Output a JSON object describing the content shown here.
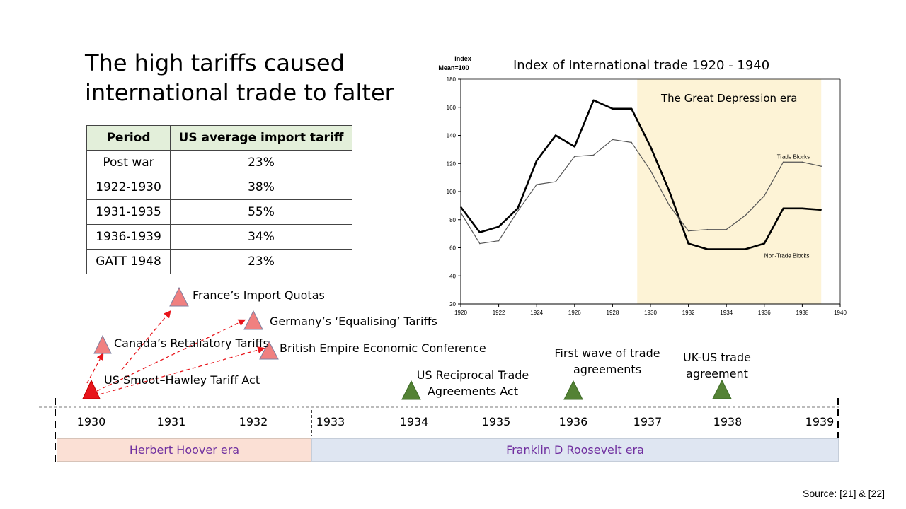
{
  "title": "The high tariffs caused international trade to falter",
  "table": {
    "headers": [
      "Period",
      "US average import tariff"
    ],
    "rows": [
      [
        "Post war",
        "23%"
      ],
      [
        "1922-1930",
        "38%"
      ],
      [
        "1931-1935",
        "55%"
      ],
      [
        "1936-1939",
        "34%"
      ],
      [
        "GATT 1948",
        "23%"
      ]
    ]
  },
  "chart_data": {
    "type": "line",
    "title": "Index of International trade 1920 - 1940",
    "ylabel": "Index\nMean=100",
    "ylabel_line1": "Index",
    "ylabel_line2": "Mean=100",
    "xlim": [
      1920,
      1940
    ],
    "ylim": [
      20,
      180
    ],
    "xticks": [
      1920,
      1922,
      1924,
      1926,
      1928,
      1930,
      1932,
      1934,
      1936,
      1938,
      1940
    ],
    "yticks": [
      20,
      40,
      60,
      80,
      100,
      120,
      140,
      160,
      180
    ],
    "shaded_region": {
      "label": "The Great Depression era",
      "from": 1929.3,
      "to": 1939,
      "color": "#fdf3d6"
    },
    "series": [
      {
        "name": "Non-Trade Blocks",
        "emphasis": "thick",
        "x": [
          1920,
          1921,
          1922,
          1923,
          1924,
          1925,
          1926,
          1927,
          1928,
          1929,
          1930,
          1931,
          1932,
          1933,
          1934,
          1935,
          1936,
          1937,
          1938,
          1939
        ],
        "y": [
          89,
          71,
          75,
          88,
          122,
          140,
          132,
          165,
          159,
          159,
          132,
          100,
          63,
          59,
          59,
          59,
          63,
          88,
          88,
          87
        ]
      },
      {
        "name": "Trade Blocks",
        "emphasis": "thin",
        "x": [
          1920,
          1921,
          1922,
          1923,
          1924,
          1925,
          1926,
          1927,
          1928,
          1929,
          1930,
          1931,
          1932,
          1933,
          1934,
          1935,
          1936,
          1937,
          1938,
          1939
        ],
        "y": [
          85,
          63,
          65,
          86,
          105,
          107,
          125,
          126,
          137,
          135,
          115,
          90,
          72,
          73,
          73,
          83,
          97,
          121,
          121,
          118
        ]
      }
    ],
    "grid": false
  },
  "timeline": {
    "years": [
      "1930",
      "1931",
      "1932",
      "1933",
      "1934",
      "1935",
      "1936",
      "1937",
      "1938",
      "1939"
    ],
    "events": {
      "smoot": "US Smoot–Hawley Tariff Act",
      "canada": "Canada’s Retaliatory Tariffs",
      "france": "France’s Import Quotas",
      "germany": "Germany’s ‘Equalising’ Tariffs",
      "british": "British Empire Economic Conference",
      "reciprocal": "US Reciprocal Trade Agreements Act",
      "firstwave": "First wave of trade agreements",
      "ukus": "UK-US trade agreement"
    },
    "eras": {
      "hoover": "Herbert Hoover era",
      "fdr": "Franklin D Roosevelt era"
    },
    "colors": {
      "protection": "#f08080",
      "protection_main": "#e8151b",
      "agreement": "#548235",
      "era_text": "#7030a0"
    }
  },
  "source": "Source: [21] & [22]"
}
